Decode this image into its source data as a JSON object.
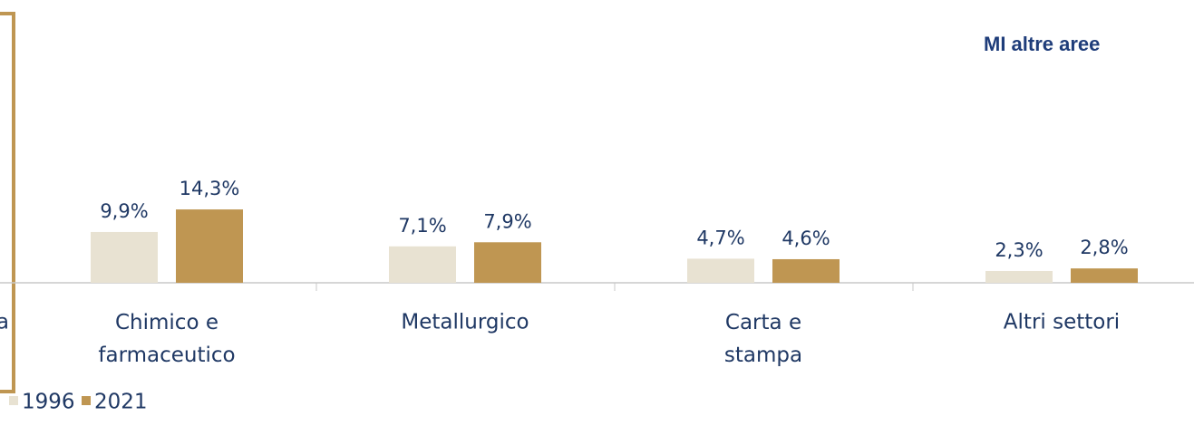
{
  "chart_data": {
    "type": "bar",
    "title": "MI altre aree",
    "categories": [
      "a",
      "Chimico e farmaceutico",
      "Metallurgico",
      "Carta e stampa",
      "Altri settori"
    ],
    "series": [
      {
        "name": "1996",
        "color": "#e8e2d2",
        "values": [
          null,
          9.9,
          7.1,
          4.7,
          2.3
        ],
        "value_labels": [
          null,
          "9,9%",
          "7,1%",
          "4,7%",
          "2,3%"
        ]
      },
      {
        "name": "2021",
        "color": "#bf9652",
        "values": [
          null,
          14.3,
          7.9,
          4.6,
          2.8
        ],
        "value_labels": [
          null,
          "14,3%",
          "7,9%",
          "4,6%",
          "2,8%"
        ]
      }
    ]
  }
}
